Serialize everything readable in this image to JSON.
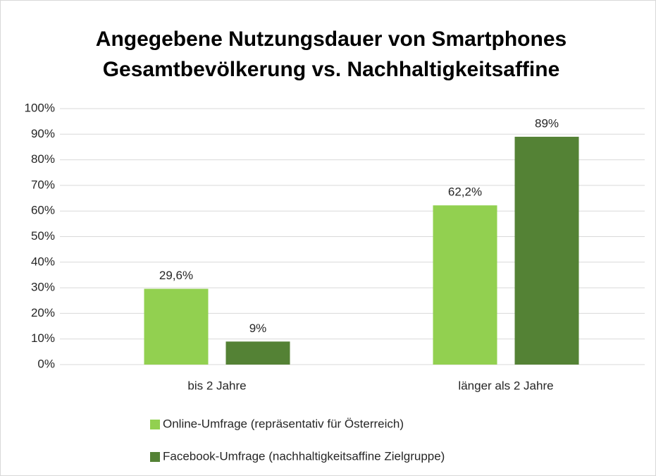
{
  "chart_data": {
    "type": "bar",
    "title": [
      "Angegebene Nutzungsdauer von Smartphones",
      "Gesamtbevölkerung vs. Nachhaltigkeitsaffine"
    ],
    "categories": [
      "bis 2 Jahre",
      "länger als 2 Jahre"
    ],
    "series": [
      {
        "name": "Online-Umfrage (repräsentativ für Österreich)",
        "color": "#92d050",
        "values": [
          29.6,
          62.2
        ],
        "value_labels": [
          "29,6%",
          "62,2%"
        ]
      },
      {
        "name": "Facebook-Umfrage (nachhaltigkeitsaffine Zielgruppe)",
        "color": "#548235",
        "values": [
          9,
          89
        ],
        "value_labels": [
          "9%",
          "89%"
        ]
      }
    ],
    "ylim": [
      0,
      100
    ],
    "yticks": [
      {
        "value": 0,
        "label": "0%"
      },
      {
        "value": 10,
        "label": "10%"
      },
      {
        "value": 20,
        "label": "20%"
      },
      {
        "value": 30,
        "label": "30%"
      },
      {
        "value": 40,
        "label": "40%"
      },
      {
        "value": 50,
        "label": "50%"
      },
      {
        "value": 60,
        "label": "60%"
      },
      {
        "value": 70,
        "label": "70%"
      },
      {
        "value": 80,
        "label": "80%"
      },
      {
        "value": 90,
        "label": "90%"
      },
      {
        "value": 100,
        "label": "100%"
      }
    ],
    "grid": true,
    "legend": "bottom"
  }
}
